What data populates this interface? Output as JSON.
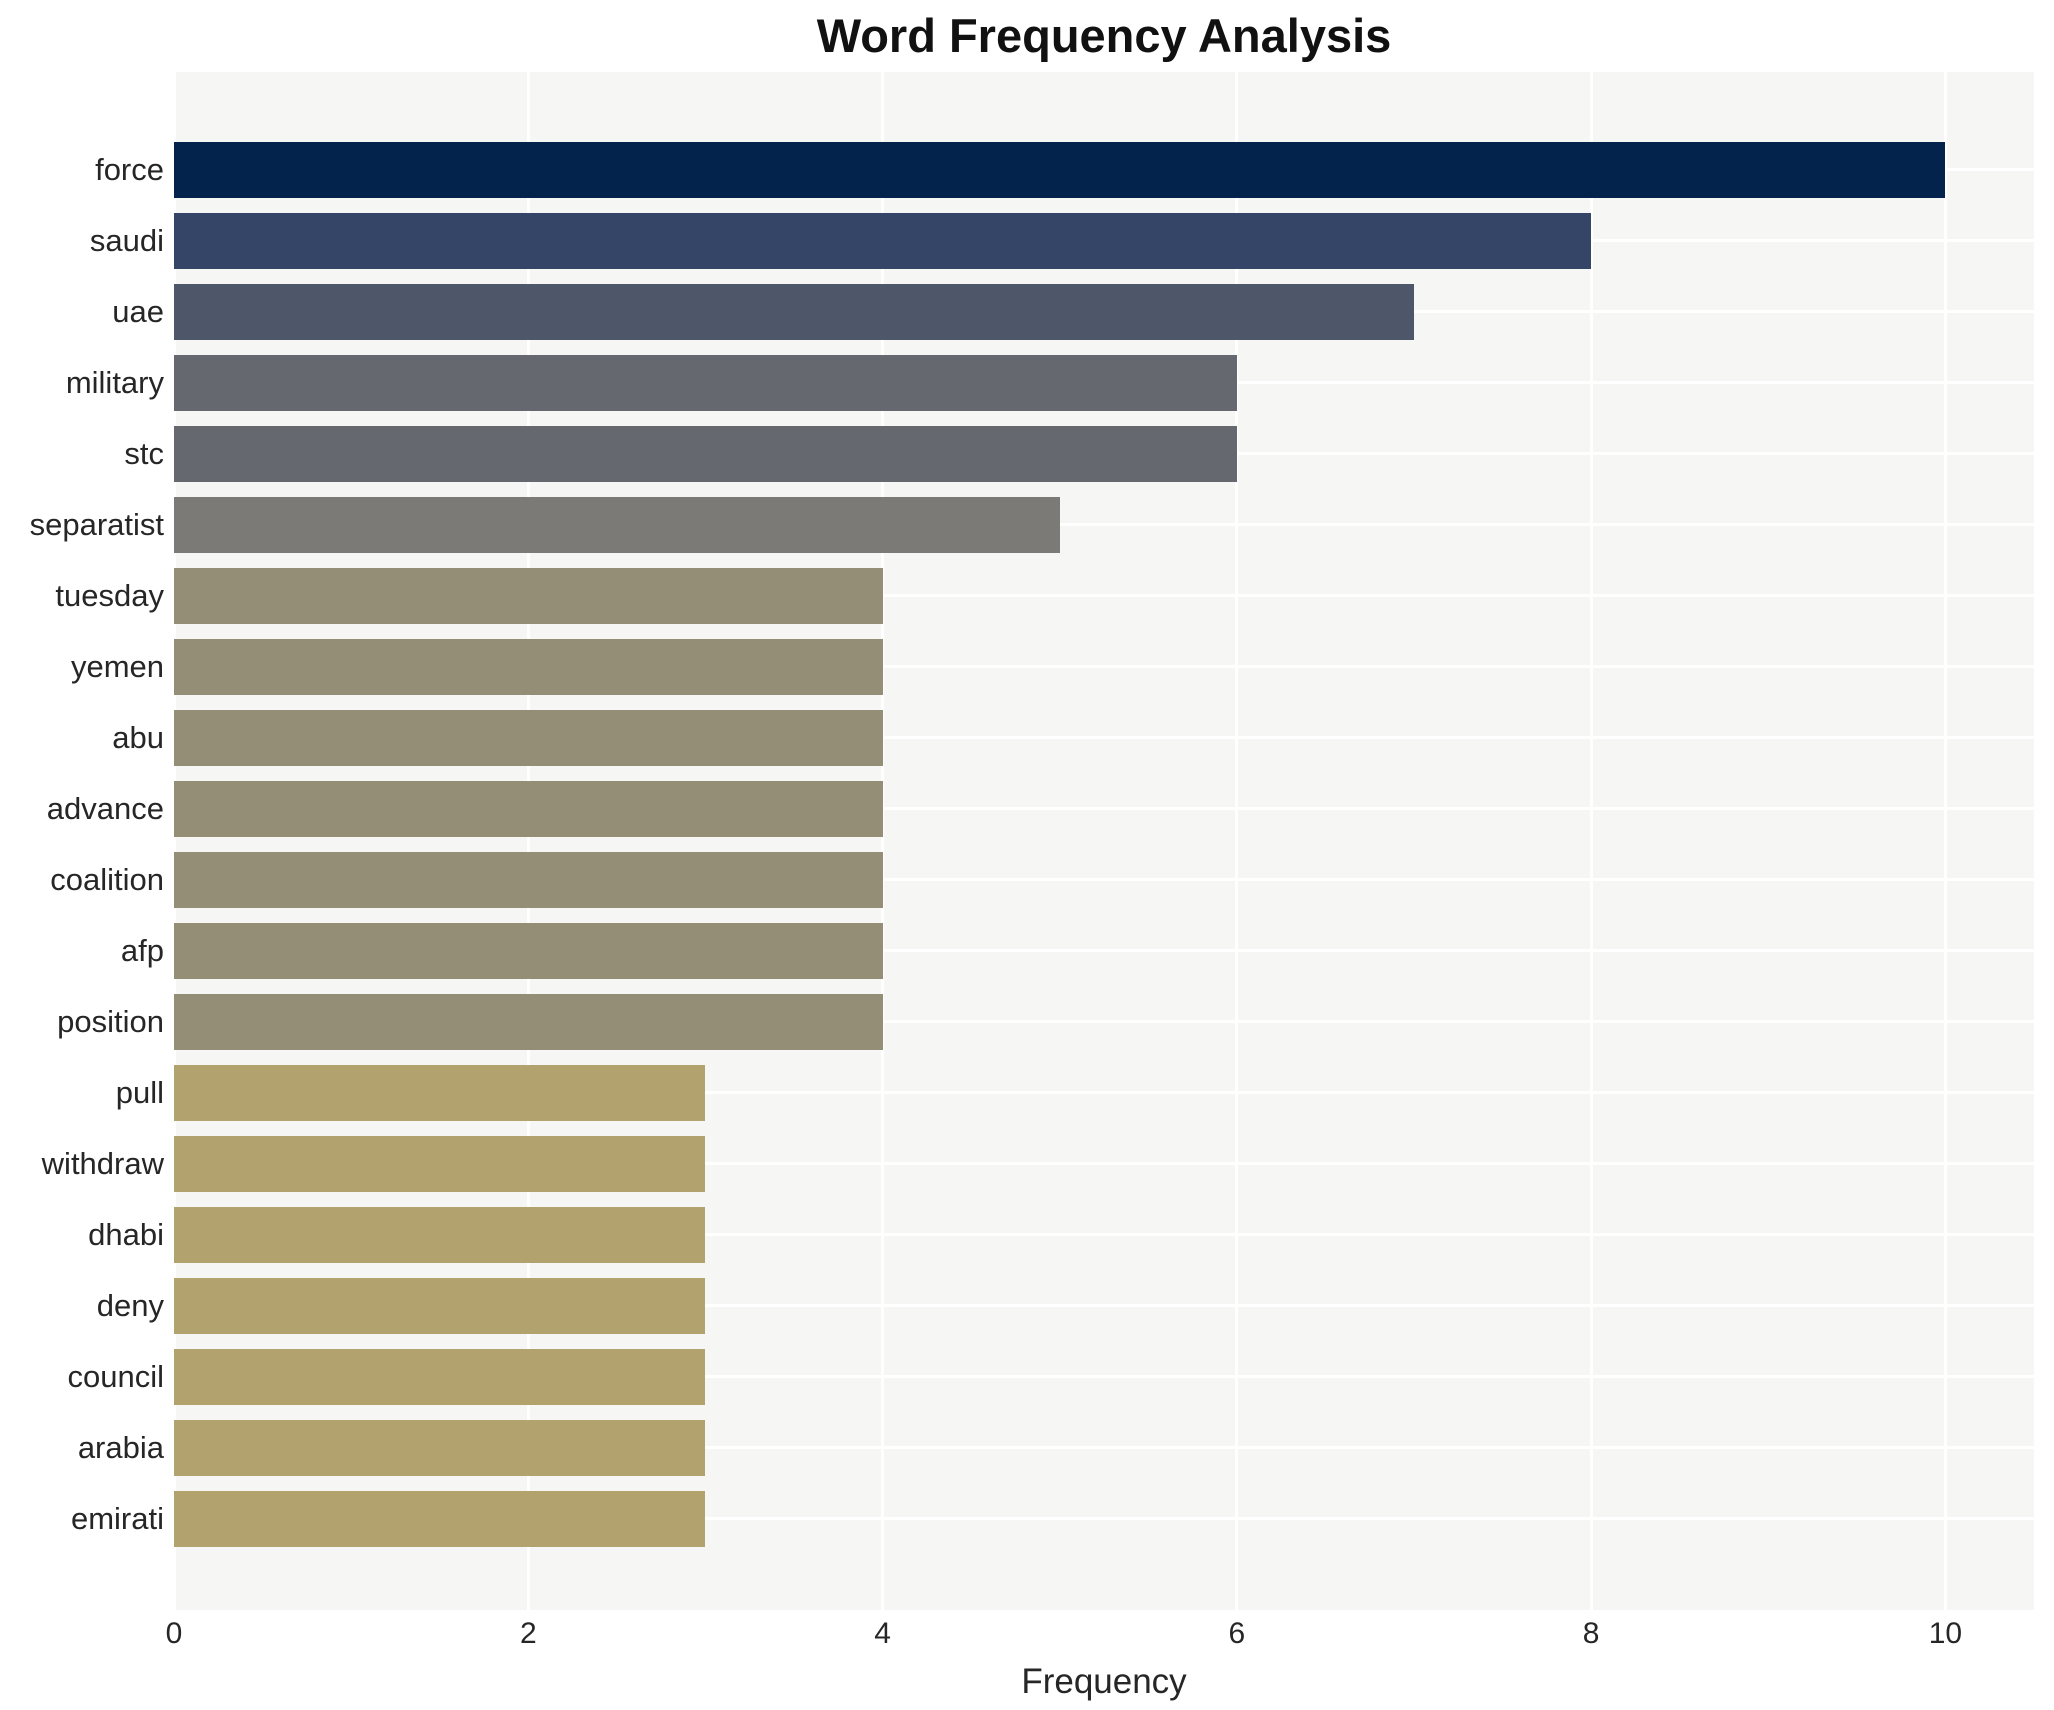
{
  "title": "Word Frequency Analysis",
  "chart_data": {
    "type": "bar",
    "orientation": "horizontal",
    "title": "Word Frequency Analysis",
    "xlabel": "Frequency",
    "ylabel": "",
    "categories": [
      "force",
      "saudi",
      "uae",
      "military",
      "stc",
      "separatist",
      "tuesday",
      "yemen",
      "abu",
      "advance",
      "coalition",
      "afp",
      "position",
      "pull",
      "withdraw",
      "dhabi",
      "deny",
      "council",
      "arabia",
      "emirati"
    ],
    "values": [
      10,
      8,
      7,
      6,
      6,
      5,
      4,
      4,
      4,
      4,
      4,
      4,
      4,
      3,
      3,
      3,
      3,
      3,
      3,
      3
    ],
    "bar_colors": [
      "#03234d",
      "#344568",
      "#4e5669",
      "#65686f",
      "#65686f",
      "#7b7a76",
      "#938e75",
      "#938e75",
      "#938e75",
      "#938e75",
      "#938e75",
      "#938e75",
      "#938e75",
      "#b1a26e",
      "#b1a26e",
      "#b1a26e",
      "#b1a26e",
      "#b1a26e",
      "#b1a26e",
      "#b1a26e"
    ],
    "xticks": [
      0,
      2,
      4,
      6,
      8,
      10
    ],
    "xlim": [
      0,
      10.5
    ],
    "grid": true,
    "legend": false,
    "plot_bg_color": "#f6f6f4",
    "figure_bg_color": "#ffffff",
    "grid_color": "#ffffff",
    "text_color": "#262626"
  }
}
